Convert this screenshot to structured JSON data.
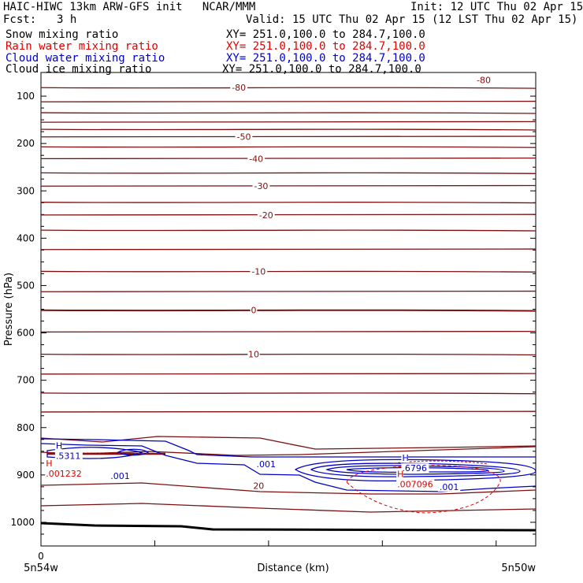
{
  "header": {
    "model_line": "HAIC-HIWC 13km ARW-GFS init   NCAR/MMM",
    "init_line": "Init: 12 UTC Thu 02 Apr 15",
    "fcst_label": "Fcst:",
    "fcst_value": "3 h",
    "valid_line": "Valid: 15 UTC Thu 02 Apr 15 (12 LST Thu 02 Apr 15)"
  },
  "fields": [
    {
      "name": "Snow mixing ratio",
      "xy": "XY= 251.0,100.0 to 284.7,100.0",
      "color": "#000000"
    },
    {
      "name": "Rain water mixing ratio",
      "xy": "XY= 251.0,100.0 to 284.7,100.0",
      "color": "#e00000"
    },
    {
      "name": "Cloud water mixing ratio",
      "xy": "XY= 251.0,100.0 to 284.7,100.0",
      "color": "#0000c8"
    },
    {
      "name": "Cloud ice mixing ratio",
      "xy": "XY= 251.0,100.0 to 284.7,100.0",
      "color": "#000000"
    }
  ],
  "chart_data": {
    "type": "cross-section",
    "ylabel": "Pressure (hPa)",
    "xlabel": "Distance (km)",
    "x_left_label": "5n54w",
    "x_right_label": "5n50w",
    "x_tick_zero": "0",
    "y_axis": {
      "min": 50,
      "max": 1050,
      "ticks": [
        100,
        200,
        300,
        400,
        500,
        600,
        700,
        800,
        900,
        1000
      ]
    },
    "x_axis": {
      "min": 0,
      "max": 1,
      "ticks": [
        0,
        0.23,
        0.46,
        0.69,
        0.92
      ]
    },
    "colors": {
      "temperature": "#7a1010",
      "cloud_water": "#0000c8",
      "rain_water": "#e00000",
      "ground": "#000000"
    },
    "temperature_contours": [
      {
        "p": 82,
        "label": "-80",
        "label_x": 0.4
      },
      {
        "p": 112
      },
      {
        "p": 135
      },
      {
        "p": 155
      },
      {
        "p": 170
      },
      {
        "p": 186,
        "label": "-50",
        "label_x": 0.41
      },
      {
        "p": 207
      },
      {
        "p": 232,
        "label": "-40",
        "label_x": 0.435
      },
      {
        "p": 262
      },
      {
        "p": 290,
        "label": "-30",
        "label_x": 0.445
      },
      {
        "p": 324
      },
      {
        "p": 351,
        "label": "-20",
        "label_x": 0.455
      },
      {
        "p": 383
      },
      {
        "p": 424
      },
      {
        "p": 470,
        "label": "-10",
        "label_x": 0.44
      },
      {
        "p": 513
      },
      {
        "p": 552,
        "label": "0",
        "label_x": 0.43
      },
      {
        "p": 598
      },
      {
        "p": 645,
        "label": "10",
        "label_x": 0.43
      },
      {
        "p": 687
      },
      {
        "p": 727
      },
      {
        "p": 767
      }
    ],
    "right_label": {
      "text": "-80",
      "x": 0.895,
      "p": 66
    },
    "label_20": {
      "text": "20",
      "x": 0.44,
      "p": 923
    },
    "cloud_water_labels": [
      {
        "text": ".001",
        "x": 0.455,
        "p": 877
      },
      {
        "text": ".001",
        "x": 0.16,
        "p": 902
      },
      {
        "text": ".001",
        "x": 0.825,
        "p": 925
      }
    ],
    "maxima": [
      {
        "symbol": "H",
        "value": ".5311",
        "x": 0.03,
        "p": 858,
        "color": "#0000c8"
      },
      {
        "symbol": "H",
        "value": ".001232",
        "x": 0.01,
        "p": 895,
        "color": "#e00000"
      },
      {
        "symbol": "H",
        "value": ".6796",
        "x": 0.73,
        "p": 884,
        "color": "#0000c8"
      },
      {
        "symbol": "H",
        "value": ".007096",
        "x": 0.72,
        "p": 918,
        "color": "#e00000"
      }
    ]
  }
}
